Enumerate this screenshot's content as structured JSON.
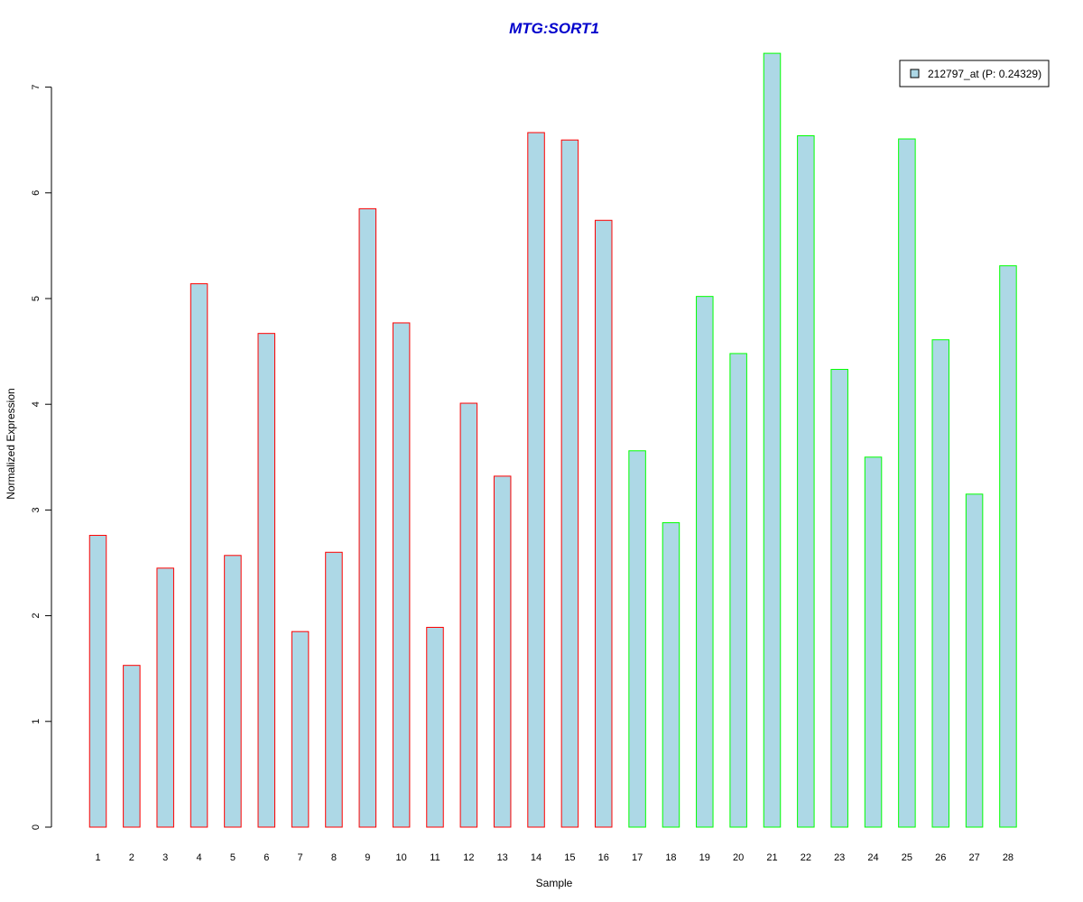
{
  "chart_data": {
    "type": "bar",
    "title": "MTG:SORT1",
    "title_color": "#0000CC",
    "xlabel": "Sample",
    "ylabel": "Normalized Expression",
    "ylim": [
      0,
      7.35
    ],
    "y_ticks": [
      0,
      1,
      2,
      3,
      4,
      5,
      6,
      7
    ],
    "grid": false,
    "legend_position": "top-right",
    "categories": [
      "1",
      "2",
      "3",
      "4",
      "5",
      "6",
      "7",
      "8",
      "9",
      "10",
      "11",
      "12",
      "13",
      "14",
      "15",
      "16",
      "17",
      "18",
      "19",
      "20",
      "21",
      "22",
      "23",
      "24",
      "25",
      "26",
      "27",
      "28"
    ],
    "series": [
      {
        "name": "212797_at (P: 0.24329)",
        "fill": "#ADD8E6",
        "values": [
          2.76,
          1.53,
          2.45,
          5.14,
          2.57,
          4.67,
          1.85,
          2.6,
          5.85,
          4.77,
          1.89,
          4.01,
          3.32,
          6.57,
          6.5,
          5.74,
          3.56,
          2.88,
          5.02,
          4.48,
          7.32,
          6.54,
          4.33,
          3.5,
          6.51,
          4.61,
          3.15,
          5.31
        ],
        "groups": [
          "red",
          "red",
          "red",
          "red",
          "red",
          "red",
          "red",
          "red",
          "red",
          "red",
          "red",
          "red",
          "red",
          "red",
          "red",
          "red",
          "green",
          "green",
          "green",
          "green",
          "green",
          "green",
          "green",
          "green",
          "green",
          "green",
          "green",
          "green"
        ]
      }
    ],
    "group_colors": {
      "red": "#FF0000",
      "green": "#00FF00"
    }
  }
}
